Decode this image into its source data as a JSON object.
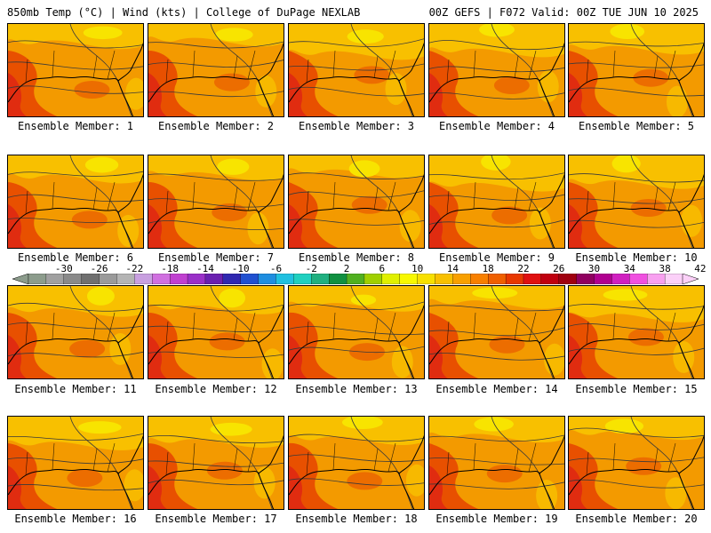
{
  "header": {
    "left": "850mb Temp (°C) | Wind (kts) | College of DuPage NEXLAB",
    "right": "00Z GEFS | F072 Valid: 00Z TUE JUN 10 2025"
  },
  "panels": [
    {
      "label": "Ensemble Member: 1"
    },
    {
      "label": "Ensemble Member: 2"
    },
    {
      "label": "Ensemble Member: 3"
    },
    {
      "label": "Ensemble Member: 4"
    },
    {
      "label": "Ensemble Member: 5"
    },
    {
      "label": "Ensemble Member: 6"
    },
    {
      "label": "Ensemble Member: 7"
    },
    {
      "label": "Ensemble Member: 8"
    },
    {
      "label": "Ensemble Member: 9"
    },
    {
      "label": "Ensemble Member: 10"
    },
    {
      "label": "Ensemble Member: 11"
    },
    {
      "label": "Ensemble Member: 12"
    },
    {
      "label": "Ensemble Member: 13"
    },
    {
      "label": "Ensemble Member: 14"
    },
    {
      "label": "Ensemble Member: 15"
    },
    {
      "label": "Ensemble Member: 16"
    },
    {
      "label": "Ensemble Member: 17"
    },
    {
      "label": "Ensemble Member: 18"
    },
    {
      "label": "Ensemble Member: 19"
    },
    {
      "label": "Ensemble Member: 20"
    }
  ],
  "colorbar": {
    "tick_labels": [
      "-30",
      "-26",
      "-22",
      "-18",
      "-14",
      "-10",
      "-6",
      "-2",
      "2",
      "6",
      "10",
      "14",
      "18",
      "22",
      "26",
      "30",
      "34",
      "38",
      "42"
    ],
    "colors": [
      "#8c9c8c",
      "#a0a0a0",
      "#8a8a8a",
      "#707070",
      "#9a9a9a",
      "#b4b4b4",
      "#c8a0e0",
      "#d070e0",
      "#c040d0",
      "#9a30c8",
      "#6a20b0",
      "#3028b0",
      "#2050d0",
      "#1f8ee0",
      "#20c0e0",
      "#20d0c0",
      "#20b080",
      "#109040",
      "#50b020",
      "#a0d000",
      "#e0f000",
      "#f8f800",
      "#f8e000",
      "#f8c000",
      "#f8a000",
      "#f88000",
      "#f06000",
      "#e83800",
      "#e01010",
      "#c00010",
      "#a00010",
      "#900060",
      "#b00090",
      "#d020c0",
      "#f050e0",
      "#f8a0f0",
      "#fbd0f8"
    ]
  },
  "styles": {
    "map_base": "#f39a00",
    "map_warm": "#e85000",
    "map_hot": "#e02c10",
    "map_cool": "#f8c000",
    "map_cooler": "#f8e400",
    "coast": "#000000",
    "contour": "#3a3a3a"
  }
}
